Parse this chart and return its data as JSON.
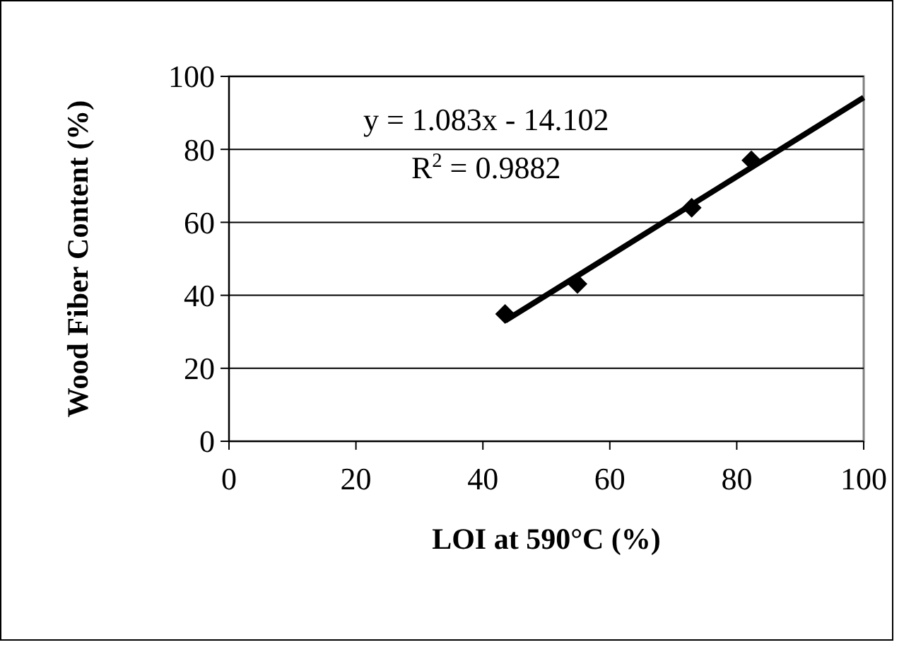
{
  "chart_data": {
    "type": "scatter",
    "xlabel": "LOI at 590°C (%)",
    "ylabel": "Wood Fiber Content (%)",
    "xlim": [
      0,
      100
    ],
    "xticks": [
      0,
      20,
      40,
      60,
      80,
      100
    ],
    "ylim": [
      0,
      100
    ],
    "yticks": [
      0,
      20,
      40,
      60,
      80,
      100
    ],
    "grid": "y",
    "marker": "diamond",
    "series": [
      {
        "color": "#000000",
        "x": [
          43.5,
          54.9,
          72.9,
          82.3
        ],
        "values": [
          34.9,
          43.1,
          64.0,
          77.0
        ]
      },
      {
        "type": "line",
        "color": "#000000",
        "marker": "none",
        "x": [
          43.5,
          100
        ],
        "values": [
          33.0,
          94.2
        ]
      }
    ],
    "annotations": [
      "y = 1.083x - 14.102",
      "R$^{2}$ = 0.9882"
    ]
  }
}
